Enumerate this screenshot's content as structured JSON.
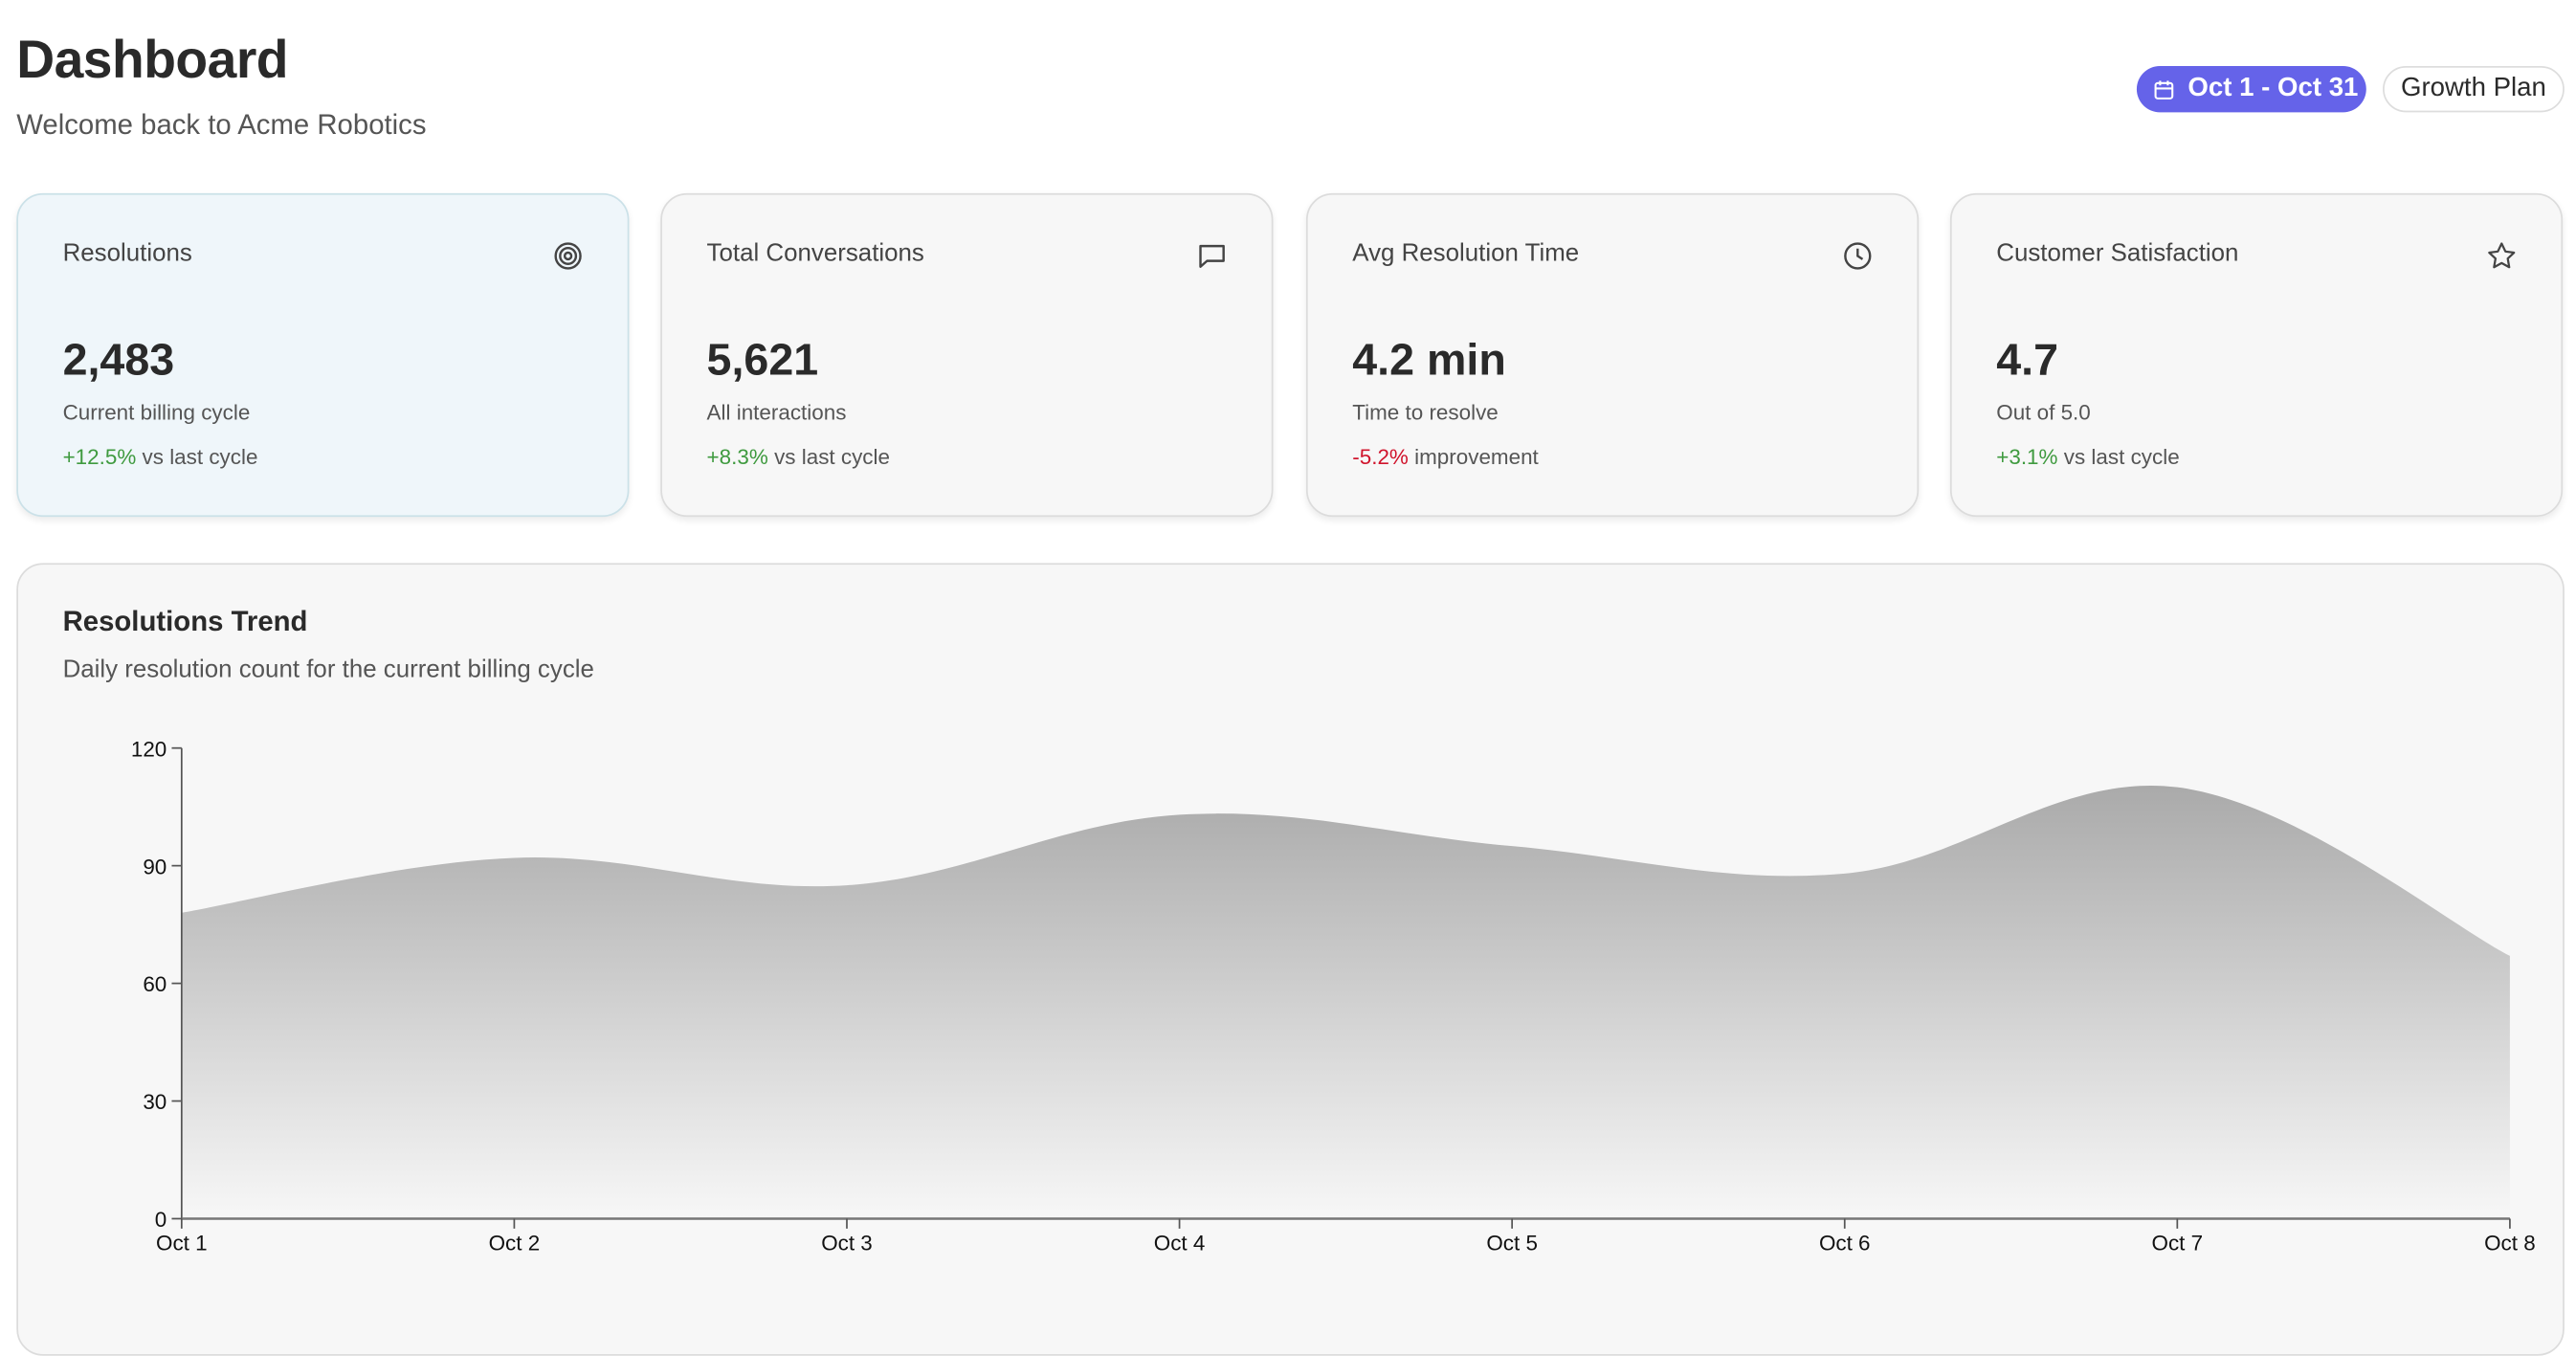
{
  "header": {
    "title": "Dashboard",
    "subtitle": "Welcome back to Acme Robotics"
  },
  "actions": {
    "date_range": "Oct 1 - Oct 31",
    "plan": "Growth Plan"
  },
  "colors": {
    "accent": "#6563e9",
    "positive": "#3f9a3f",
    "negative": "#d0142c"
  },
  "cards": [
    {
      "label": "Resolutions",
      "icon": "target-icon",
      "value": "2,483",
      "sub": "Current billing cycle",
      "change": "+12.5%",
      "change_text": "vs last cycle",
      "trend": "pos"
    },
    {
      "label": "Total Conversations",
      "icon": "message-icon",
      "value": "5,621",
      "sub": "All interactions",
      "change": "+8.3%",
      "change_text": "vs last cycle",
      "trend": "pos"
    },
    {
      "label": "Avg Resolution Time",
      "icon": "clock-icon",
      "value": "4.2 min",
      "sub": "Time to resolve",
      "change": "-5.2%",
      "change_text": "improvement",
      "trend": "neg"
    },
    {
      "label": "Customer Satisfaction",
      "icon": "star-icon",
      "value": "4.7",
      "sub": "Out of 5.0",
      "change": "+3.1%",
      "change_text": "vs last cycle",
      "trend": "pos"
    }
  ],
  "chart_data": {
    "type": "area",
    "title": "Resolutions Trend",
    "subtitle": "Daily resolution count for the current billing cycle",
    "categories": [
      "Oct 1",
      "Oct 2",
      "Oct 3",
      "Oct 4",
      "Oct 5",
      "Oct 6",
      "Oct 7",
      "Oct 8"
    ],
    "values": [
      78,
      92,
      85,
      103,
      95,
      88,
      110,
      67
    ],
    "ylim": [
      0,
      120
    ],
    "yticks": [
      0,
      30,
      60,
      90,
      120
    ],
    "xlabel": "",
    "ylabel": "",
    "grid": false
  }
}
